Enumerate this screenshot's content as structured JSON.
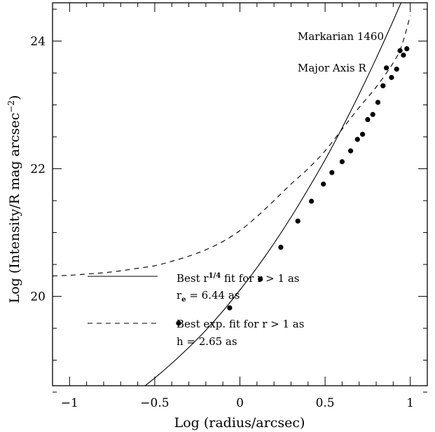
{
  "chart_data": {
    "type": "scatter",
    "title": "",
    "xlabel": "Log (radius/arcsec)",
    "ylabel": "Log (Intensity/R mag arcsec^-2)",
    "ylabel_parts": {
      "main": "Log (Intensity/R mag arcsec",
      "sup": "−2",
      "close": ")"
    },
    "xlim": [
      -1.1,
      1.1
    ],
    "ylim": [
      24.6,
      18.6
    ],
    "y_inverted": true,
    "grid": false,
    "x_ticks": [
      -1,
      -0.5,
      0,
      0.5,
      1
    ],
    "x_tick_labels": [
      "−1",
      "−0.5",
      "0",
      "0.5",
      "1"
    ],
    "y_ticks": [
      20,
      22,
      24
    ],
    "y_tick_labels": [
      "20",
      "22",
      "24"
    ],
    "annotations": {
      "object": "Markarian 1460",
      "band": "Major Axis R"
    },
    "legend": {
      "placement": "bottom-left",
      "entries": [
        {
          "style": "solid",
          "line1_prefix": "Best r",
          "line1_sup": "1/4",
          "line1_suffix": " fit for r > 1 as",
          "line2_prefix": "r",
          "line2_sub": "e",
          "line2_suffix": " = 6.44 as"
        },
        {
          "style": "dashed",
          "line1_prefix": "Best exp. fit for r > 1 as",
          "line2_prefix": "h = 2.65 as"
        }
      ]
    },
    "series": [
      {
        "kind": "points",
        "x": [
          -0.36,
          -0.06,
          0.12,
          0.24,
          0.34,
          0.42,
          0.49,
          0.54,
          0.6,
          0.65,
          0.69,
          0.72,
          0.75,
          0.78,
          0.81,
          0.84,
          0.86,
          0.89,
          0.92,
          0.94,
          0.96,
          0.98
        ],
        "y": [
          19.58,
          19.82,
          20.27,
          20.77,
          21.18,
          21.49,
          21.76,
          21.94,
          22.11,
          22.28,
          22.46,
          22.54,
          22.77,
          22.85,
          23.04,
          23.3,
          23.58,
          23.43,
          23.56,
          23.85,
          23.78,
          23.88
        ]
      },
      {
        "kind": "line",
        "style": "solid",
        "x": [
          -0.6,
          -0.5,
          -0.4,
          -0.3,
          -0.2,
          -0.1,
          0.0,
          0.1,
          0.2,
          0.3,
          0.4,
          0.5,
          0.6,
          0.7,
          0.8,
          0.9,
          1.0
        ],
        "y": [
          18.51,
          18.72,
          18.95,
          19.2,
          19.47,
          19.77,
          20.1,
          20.45,
          20.83,
          21.24,
          21.68,
          22.14,
          22.64,
          23.17,
          23.73,
          24.32,
          24.94
        ]
      },
      {
        "kind": "line",
        "style": "dashed",
        "x": [
          -1.1,
          -1.0,
          -0.9,
          -0.8,
          -0.7,
          -0.6,
          -0.5,
          -0.4,
          -0.3,
          -0.2,
          -0.1,
          0.0,
          0.1,
          0.2,
          0.3,
          0.4,
          0.5,
          0.6,
          0.7,
          0.8,
          0.9,
          0.95,
          1.0
        ],
        "y": [
          20.32,
          20.33,
          20.35,
          20.37,
          20.4,
          20.44,
          20.48,
          20.55,
          20.63,
          20.73,
          20.86,
          21.03,
          21.25,
          21.5,
          21.76,
          22.0,
          22.28,
          22.62,
          22.96,
          23.28,
          23.66,
          23.93,
          24.4
        ]
      }
    ]
  }
}
